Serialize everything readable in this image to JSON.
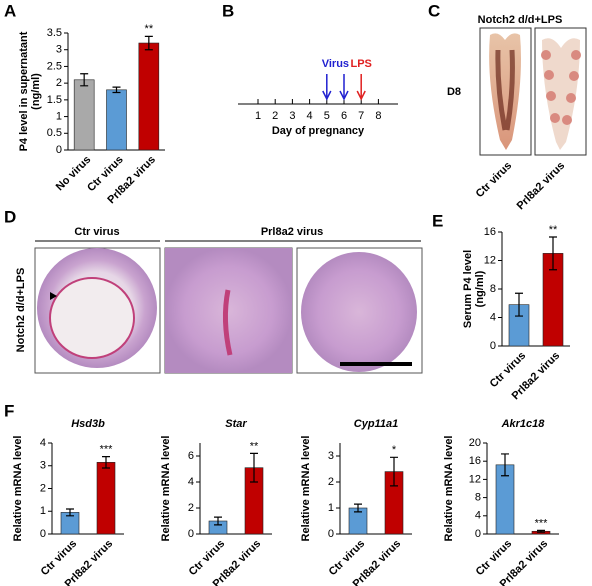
{
  "panel_labels": [
    "A",
    "B",
    "C",
    "D",
    "E",
    "F"
  ],
  "chart_data": [
    {
      "type": "bar",
      "ylabel": [
        "P4 level in supernatant",
        "(ng/ml)"
      ],
      "categories": [
        "No virus",
        "Ctr virus",
        "Prl8a2 virus"
      ],
      "values": [
        2.1,
        1.8,
        3.2
      ],
      "errors": [
        0.18,
        0.08,
        0.2
      ],
      "colors": [
        "#a9a9a9",
        "#5b9bd5",
        "#c00000"
      ],
      "significance": [
        null,
        null,
        "**"
      ],
      "ylim": [
        0,
        3.5
      ],
      "yticks": [
        0,
        0.5,
        1,
        1.5,
        2,
        2.5,
        3,
        3.5
      ]
    },
    {
      "type": "bar",
      "ylabel": [
        "Serum P4 level",
        "(ng/ml)"
      ],
      "categories": [
        "Ctr virus",
        "Prl8a2 virus"
      ],
      "values": [
        5.8,
        13
      ],
      "errors": [
        1.6,
        2.3
      ],
      "colors": [
        "#5b9bd5",
        "#c00000"
      ],
      "significance": [
        null,
        "**"
      ],
      "ylim": [
        0,
        16
      ],
      "yticks": [
        0,
        4,
        8,
        12,
        16
      ]
    },
    {
      "type": "bar",
      "title": "Hsd3b",
      "ylabel": [
        "Relative mRNA level"
      ],
      "categories": [
        "Ctr virus",
        "Prl8a2 virus"
      ],
      "values": [
        0.95,
        3.15
      ],
      "errors": [
        0.15,
        0.25
      ],
      "colors": [
        "#5b9bd5",
        "#c00000"
      ],
      "significance": [
        null,
        "***"
      ],
      "ylim": [
        0,
        4
      ],
      "yticks": [
        0,
        1,
        2,
        3,
        4
      ]
    },
    {
      "type": "bar",
      "title": "Star",
      "ylabel": [
        "Relative mRNA level"
      ],
      "categories": [
        "Ctr virus",
        "Prl8a2 virus"
      ],
      "values": [
        1,
        5.1
      ],
      "errors": [
        0.3,
        1.1
      ],
      "colors": [
        "#5b9bd5",
        "#c00000"
      ],
      "significance": [
        null,
        "**"
      ],
      "ylim": [
        0,
        7
      ],
      "yticks": [
        0,
        2,
        4,
        6
      ]
    },
    {
      "type": "bar",
      "title": "Cyp11a1",
      "ylabel": [
        "Relative mRNA level"
      ],
      "categories": [
        "Ctr virus",
        "Prl8a2 virus"
      ],
      "values": [
        1,
        2.4
      ],
      "errors": [
        0.15,
        0.55
      ],
      "colors": [
        "#5b9bd5",
        "#c00000"
      ],
      "significance": [
        null,
        "*"
      ],
      "ylim": [
        0,
        3.5
      ],
      "yticks": [
        0,
        1,
        2,
        3
      ]
    },
    {
      "type": "bar",
      "title": "Akr1c18",
      "ylabel": [
        "Relative mRNA level"
      ],
      "categories": [
        "Ctr virus",
        "Prl8a2 virus"
      ],
      "values": [
        15.2,
        0.6
      ],
      "errors": [
        2.4,
        0.2
      ],
      "colors": [
        "#5b9bd5",
        "#c00000"
      ],
      "significance": [
        null,
        "***"
      ],
      "ylim": [
        0,
        20
      ],
      "yticks": [
        0,
        4,
        8,
        12,
        16,
        20
      ]
    }
  ],
  "timeline": {
    "days": [
      1,
      2,
      3,
      4,
      5,
      6,
      7,
      8
    ],
    "label": "Day of pregnancy",
    "virus": {
      "label": "Virus",
      "days": [
        5,
        6
      ],
      "color": "#1f1fd0"
    },
    "lps": {
      "label": "LPS",
      "days": [
        7
      ],
      "color": "#e02020"
    }
  },
  "photo_c": {
    "title": "Notch2 d/d+LPS",
    "day": "D8",
    "labels": [
      "Ctr virus",
      "Prl8a2 virus"
    ]
  },
  "histology_d": {
    "side_label": "Notch2 d/d+LPS",
    "groups": [
      "Ctr virus",
      "Prl8a2 virus"
    ]
  }
}
